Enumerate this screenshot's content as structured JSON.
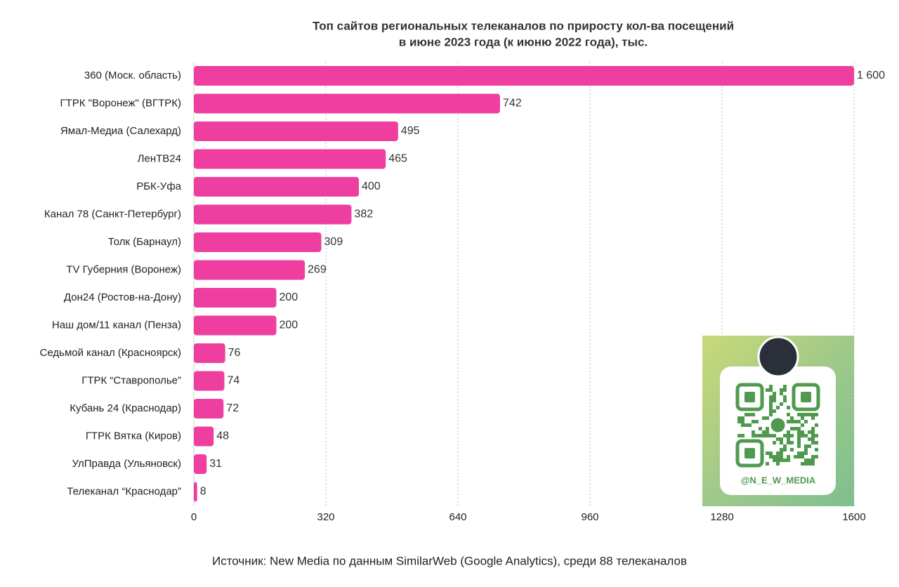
{
  "chart_data": {
    "type": "bar",
    "orientation": "horizontal",
    "title": [
      "Топ сайтов региональных телеканалов по приросту кол-ва посещений",
      "в июне 2023 года (к июню 2022 года), тыс."
    ],
    "categories": [
      "360 (Моск. область)",
      "ГТРК \"Воронеж\" (ВГТРК)",
      "Ямал-Медиа (Салехард)",
      "ЛенТВ24",
      "РБК-Уфа",
      "Канал 78 (Санкт-Петербург)",
      "Толк (Барнаул)",
      "TV Губерния (Воронеж)",
      "Дон24 (Ростов-на-Дону)",
      "Наш дом/11 канал (Пенза)",
      "Седьмой канал (Красноярск)",
      "ГТРК “Ставрополье”",
      "Кубань 24 (Краснодар)",
      "ГТРК Вятка (Киров)",
      "УлПравда (Ульяновск)",
      "Телеканал “Краснодар”"
    ],
    "values": [
      1600,
      742,
      495,
      465,
      400,
      382,
      309,
      269,
      200,
      200,
      76,
      74,
      72,
      48,
      31,
      8
    ],
    "value_labels": [
      "1 600",
      "742",
      "495",
      "465",
      "400",
      "382",
      "309",
      "269",
      "200",
      "200",
      "76",
      "74",
      "72",
      "48",
      "31",
      "8"
    ],
    "color": "#ee3fa0",
    "xlim": [
      0,
      1600
    ],
    "xticks": [
      0,
      320,
      640,
      960,
      1280,
      1600
    ],
    "grid": true,
    "source": "Источник: New Media по данным SimilarWeb (Google Analytics), среди 88 телеканалов",
    "overlay_label": "@N_E_W_MEDIA"
  }
}
